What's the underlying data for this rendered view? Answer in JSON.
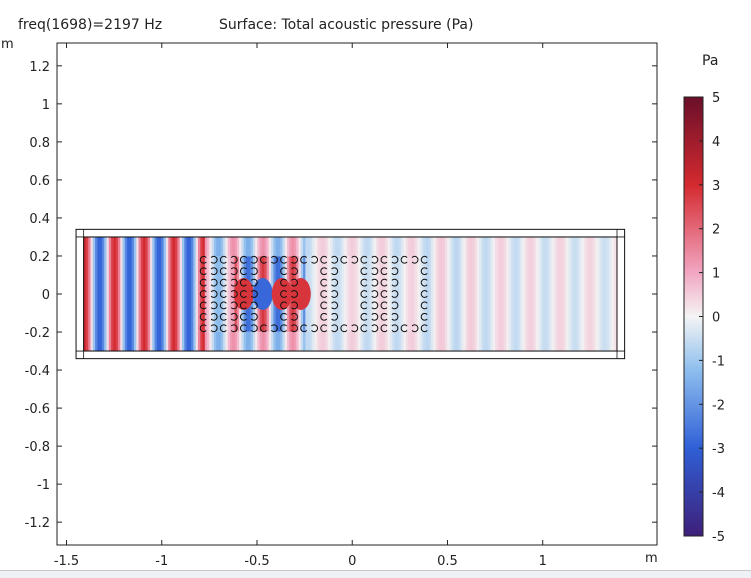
{
  "header": {
    "freq_label": "freq(1698)=2197 Hz",
    "surface_label": "Surface: Total acoustic pressure (Pa)"
  },
  "chart_data": {
    "type": "heatmap",
    "quantity": "Total acoustic pressure",
    "x_unit": "m",
    "y_unit": "m",
    "xlim": [
      -1.55,
      1.6
    ],
    "ylim": [
      -1.32,
      1.32
    ],
    "x_ticks": [
      "-1.5",
      "-1",
      "-0.5",
      "0",
      "0.5",
      "1"
    ],
    "x_tick_values": [
      -1.5,
      -1.0,
      -0.5,
      0.0,
      0.5,
      1.0
    ],
    "y_ticks": [
      "1.2",
      "1",
      "0.8",
      "0.6",
      "0.4",
      "0.2",
      "0",
      "-0.2",
      "-0.4",
      "-0.6",
      "-0.8",
      "-1",
      "-1.2"
    ],
    "y_tick_values": [
      1.2,
      1.0,
      0.8,
      0.6,
      0.4,
      0.2,
      0.0,
      -0.2,
      -0.4,
      -0.6,
      -0.8,
      -1.0,
      -1.2
    ],
    "domain": {
      "outer": {
        "x": [
          -1.45,
          1.43
        ],
        "y": [
          -0.34,
          0.34
        ]
      },
      "inner": {
        "x": [
          -1.41,
          1.39
        ],
        "y": [
          -0.3,
          0.3
        ]
      }
    },
    "scatterer_array": {
      "x_range": [
        -0.78,
        0.38
      ],
      "y_range": [
        -0.18,
        0.18
      ],
      "note": "C-shaped scatterers"
    },
    "colorbar": {
      "unit": "Pa",
      "range": [
        -5,
        5
      ],
      "ticks": [
        "5",
        "4",
        "3",
        "2",
        "1",
        "0",
        "-1",
        "-2",
        "-3",
        "-4",
        "-5"
      ],
      "tick_values": [
        5,
        4,
        3,
        2,
        1,
        0,
        -1,
        -2,
        -3,
        -4,
        -5
      ],
      "colormap": "Wave",
      "colors": {
        "max": "#6a0f2a",
        "high": "#d42a2f",
        "mid_high": "#f2a6c2",
        "zero": "#f4f4f4",
        "mid_low": "#8fbfee",
        "low": "#2f5fd6",
        "min": "#3e1f79"
      }
    }
  }
}
